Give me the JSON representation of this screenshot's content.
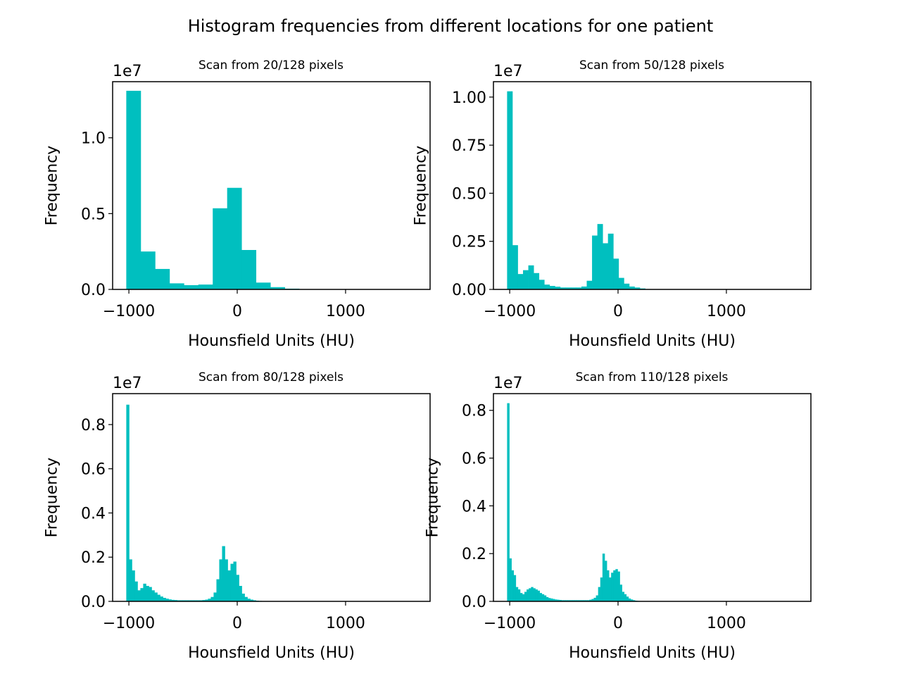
{
  "suptitle": "Histogram frequencies from different locations for one patient",
  "colors": {
    "bar": "#00bfbf",
    "axis": "#000000",
    "background": "#ffffff"
  },
  "chart_data": [
    {
      "type": "bar",
      "title": "Scan from 20/128 pixels",
      "xlabel": "Hounsfield Units (HU)",
      "ylabel": "Frequency",
      "offset_text": "1e7",
      "xlim": [
        -1150,
        1780
      ],
      "ylim": [
        0,
        1.37
      ],
      "xticks": [
        -1000,
        0,
        1000
      ],
      "xtick_labels": [
        "−1000",
        "0",
        "1000"
      ],
      "yticks": [
        0.0,
        0.5,
        1.0
      ],
      "ytick_labels": [
        "0.0",
        "0.5",
        "1.0"
      ],
      "bin_edges": [
        -1024,
        -891,
        -758,
        -625,
        -492,
        -359,
        -226,
        -93,
        40,
        173,
        306,
        439,
        572,
        705,
        838,
        971,
        1104,
        1237,
        1370,
        1503,
        1636
      ],
      "values": [
        1.31,
        0.25,
        0.135,
        0.04,
        0.028,
        0.032,
        0.535,
        0.67,
        0.26,
        0.045,
        0.015,
        0.005,
        0.002,
        0.001,
        0.001,
        0.0005,
        0.0005,
        0.0005,
        0.0005,
        0.0005
      ]
    },
    {
      "type": "bar",
      "title": "Scan from 50/128 pixels",
      "xlabel": "Hounsfield Units (HU)",
      "ylabel": "Frequency",
      "offset_text": "1e7",
      "xlim": [
        -1150,
        1780
      ],
      "ylim": [
        0,
        1.08
      ],
      "xticks": [
        -1000,
        0,
        1000
      ],
      "xtick_labels": [
        "−1000",
        "0",
        "1000"
      ],
      "yticks": [
        0.0,
        0.25,
        0.5,
        0.75,
        1.0
      ],
      "ytick_labels": [
        "0.00",
        "0.25",
        "0.50",
        "0.75",
        "1.00"
      ],
      "bin_edges": [
        -1024,
        -975,
        -926,
        -877,
        -828,
        -779,
        -730,
        -681,
        -632,
        -583,
        -534,
        -485,
        -436,
        -387,
        -338,
        -289,
        -240,
        -191,
        -142,
        -93,
        -44,
        5,
        54,
        103,
        152,
        201,
        250,
        299,
        348,
        397,
        446,
        495,
        544,
        593,
        642,
        691,
        740,
        789,
        838,
        887,
        936,
        985,
        1034,
        1083,
        1132,
        1181,
        1230,
        1279,
        1328,
        1377,
        1426
      ],
      "values": [
        1.03,
        0.23,
        0.08,
        0.1,
        0.125,
        0.085,
        0.05,
        0.025,
        0.018,
        0.014,
        0.01,
        0.01,
        0.01,
        0.01,
        0.015,
        0.045,
        0.28,
        0.34,
        0.24,
        0.29,
        0.16,
        0.06,
        0.03,
        0.015,
        0.01,
        0.005,
        0.002,
        0.001,
        0.001,
        0.001,
        0.0005,
        0.0005,
        0.0005,
        0.0005,
        0.0005,
        0.0005,
        0.0005,
        0.0005,
        0.0005,
        0.0005,
        0.0005,
        0.0005,
        0.0005,
        0.0005,
        0.0005,
        0.0005,
        0.0005,
        0.0005,
        0.0005,
        0.0005
      ]
    },
    {
      "type": "bar",
      "title": "Scan from 80/128 pixels",
      "xlabel": "Hounsfield Units (HU)",
      "ylabel": "Frequency",
      "offset_text": "1e7",
      "xlim": [
        -1150,
        1780
      ],
      "ylim": [
        0,
        0.94
      ],
      "xticks": [
        -1000,
        0,
        1000
      ],
      "xtick_labels": [
        "−1000",
        "0",
        "1000"
      ],
      "yticks": [
        0.0,
        0.2,
        0.4,
        0.6,
        0.8
      ],
      "ytick_labels": [
        "0.0",
        "0.2",
        "0.4",
        "0.6",
        "0.8"
      ],
      "bin_edges": [
        -1024,
        -998,
        -972,
        -946,
        -920,
        -894,
        -868,
        -842,
        -816,
        -790,
        -764,
        -738,
        -712,
        -686,
        -660,
        -634,
        -608,
        -582,
        -556,
        -530,
        -504,
        -478,
        -452,
        -426,
        -400,
        -374,
        -348,
        -322,
        -296,
        -270,
        -244,
        -218,
        -192,
        -166,
        -140,
        -114,
        -88,
        -62,
        -36,
        -10,
        16,
        42,
        68,
        94,
        120,
        146,
        172,
        198,
        224,
        250,
        276,
        302,
        328
      ],
      "values": [
        0.89,
        0.19,
        0.14,
        0.09,
        0.05,
        0.06,
        0.08,
        0.07,
        0.065,
        0.05,
        0.04,
        0.03,
        0.022,
        0.016,
        0.012,
        0.009,
        0.007,
        0.006,
        0.005,
        0.005,
        0.005,
        0.005,
        0.005,
        0.005,
        0.005,
        0.005,
        0.005,
        0.006,
        0.008,
        0.012,
        0.02,
        0.04,
        0.1,
        0.19,
        0.25,
        0.19,
        0.14,
        0.17,
        0.18,
        0.12,
        0.07,
        0.035,
        0.02,
        0.012,
        0.008,
        0.005,
        0.003,
        0.002,
        0.001,
        0.001,
        0.001,
        0.001
      ]
    },
    {
      "type": "bar",
      "title": "Scan from 110/128 pixels",
      "xlabel": "Hounsfield Units (HU)",
      "ylabel": "Frequency",
      "offset_text": "1e7",
      "xlim": [
        -1150,
        1780
      ],
      "ylim": [
        0,
        0.87
      ],
      "xticks": [
        -1000,
        0,
        1000
      ],
      "xtick_labels": [
        "−1000",
        "0",
        "1000"
      ],
      "yticks": [
        0.0,
        0.2,
        0.4,
        0.6,
        0.8
      ],
      "ytick_labels": [
        "0.0",
        "0.2",
        "0.4",
        "0.6",
        "0.8"
      ],
      "bin_edges": [
        -1024,
        -1004,
        -984,
        -964,
        -944,
        -924,
        -904,
        -884,
        -864,
        -844,
        -824,
        -804,
        -784,
        -764,
        -744,
        -724,
        -704,
        -684,
        -664,
        -644,
        -624,
        -604,
        -584,
        -564,
        -544,
        -524,
        -504,
        -484,
        -464,
        -444,
        -424,
        -404,
        -384,
        -364,
        -344,
        -324,
        -304,
        -284,
        -264,
        -244,
        -224,
        -204,
        -184,
        -164,
        -144,
        -124,
        -104,
        -84,
        -64,
        -44,
        -24,
        -4,
        16,
        36,
        56,
        76,
        96,
        116,
        136,
        156,
        176,
        196,
        216,
        236,
        256,
        276,
        296
      ],
      "values": [
        0.83,
        0.18,
        0.13,
        0.11,
        0.06,
        0.05,
        0.035,
        0.03,
        0.04,
        0.05,
        0.055,
        0.06,
        0.055,
        0.05,
        0.045,
        0.035,
        0.03,
        0.025,
        0.018,
        0.014,
        0.012,
        0.01,
        0.008,
        0.007,
        0.006,
        0.005,
        0.005,
        0.005,
        0.005,
        0.005,
        0.005,
        0.005,
        0.005,
        0.005,
        0.005,
        0.005,
        0.005,
        0.005,
        0.007,
        0.01,
        0.015,
        0.025,
        0.06,
        0.1,
        0.2,
        0.17,
        0.13,
        0.1,
        0.12,
        0.13,
        0.135,
        0.125,
        0.07,
        0.04,
        0.03,
        0.02,
        0.012,
        0.008,
        0.005,
        0.003,
        0.002,
        0.001,
        0.001,
        0.001,
        0.001,
        0.001
      ]
    }
  ]
}
